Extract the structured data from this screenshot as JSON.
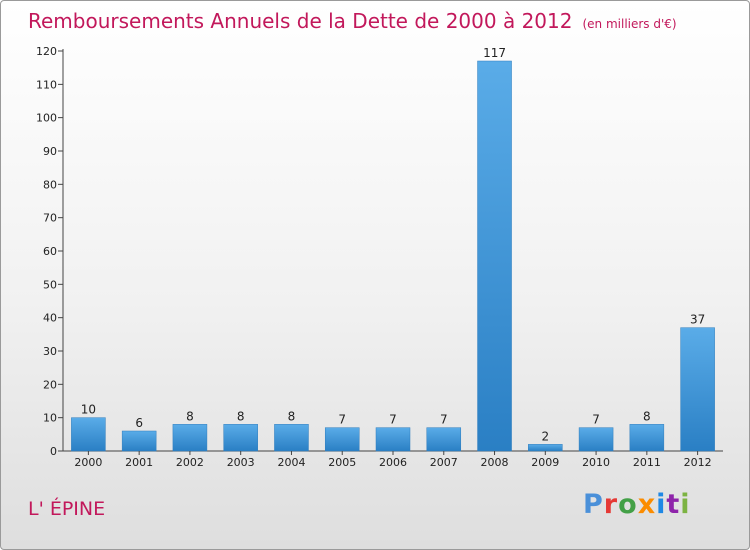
{
  "page": {
    "town": "L' ÉPINE",
    "brand": "Proxiti"
  },
  "chart_data": {
    "type": "bar",
    "title": "Remboursements Annuels de la Dette de 2000 à 2012",
    "unit_note": "(en milliers d'€)",
    "xlabel": "",
    "ylabel": "",
    "categories": [
      "2000",
      "2001",
      "2002",
      "2003",
      "2004",
      "2005",
      "2006",
      "2007",
      "2008",
      "2009",
      "2010",
      "2011",
      "2012"
    ],
    "values": [
      10,
      6,
      8,
      8,
      8,
      7,
      7,
      7,
      117,
      2,
      7,
      8,
      37
    ],
    "ylim": [
      0,
      120
    ],
    "yticks": [
      0,
      10,
      20,
      30,
      40,
      50,
      60,
      70,
      80,
      90,
      100,
      110,
      120
    ],
    "grid": false,
    "colors": {
      "bar_light": "#5aace8",
      "bar_dark": "#2a7fc4",
      "bar_edge": "#2f7dbd",
      "title": "#c2185b"
    }
  },
  "logo_colors": [
    "#4a90d9",
    "#e53935",
    "#43a047",
    "#fb8c00",
    "#1e88e5",
    "#8e24aa",
    "#7cb342"
  ]
}
